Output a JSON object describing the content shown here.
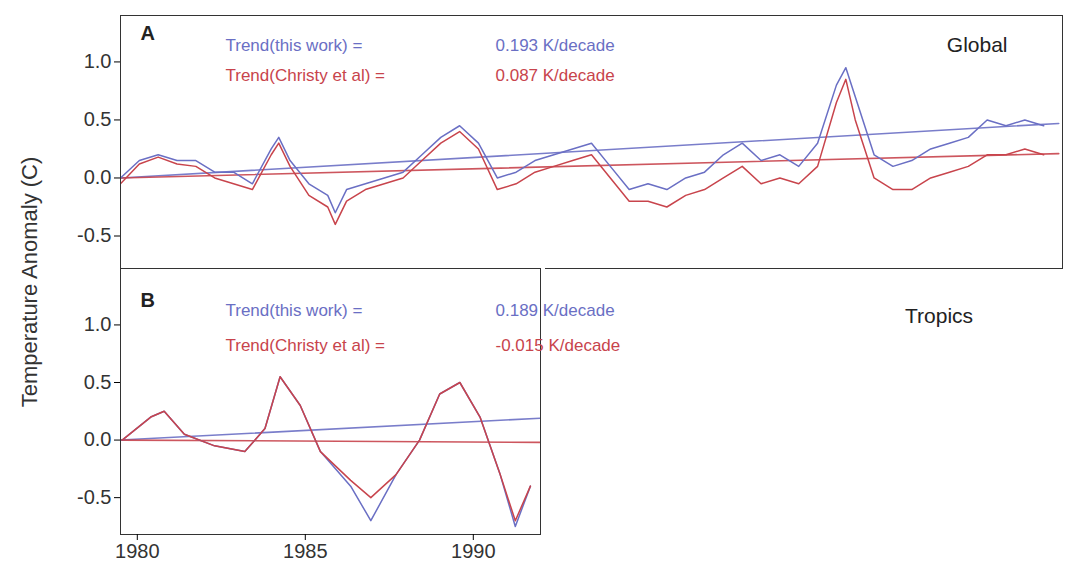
{
  "chart_data": [
    {
      "type": "line",
      "panel": "A",
      "title": "Global",
      "ylabel": "Temperature Anomaly (C)",
      "xlim": [
        1979,
        2004
      ],
      "ylim": [
        -0.78,
        1.4
      ],
      "yticks": [
        {
          "value": -0.5,
          "label": "-0.5"
        },
        {
          "value": 0,
          "label": "0.0"
        },
        {
          "value": 0.5,
          "label": "0.5"
        },
        {
          "value": 1,
          "label": "1.0"
        }
      ],
      "tick_labels": "y",
      "series": [
        {
          "name": "this work",
          "color": "#6a6fc4",
          "x": [
            1979.0,
            1979.5,
            1980.0,
            1980.5,
            1981.0,
            1981.5,
            1982.0,
            1982.5,
            1983.0,
            1983.2,
            1983.5,
            1984.0,
            1984.5,
            1984.7,
            1985.0,
            1985.5,
            1986.0,
            1986.5,
            1987.0,
            1987.5,
            1988.0,
            1988.5,
            1989.0,
            1989.5,
            1990.0,
            1990.5,
            1991.0,
            1991.5,
            1992.0,
            1992.5,
            1993.0,
            1993.5,
            1994.0,
            1994.5,
            1995.0,
            1995.5,
            1996.0,
            1996.5,
            1997.0,
            1997.5,
            1998.0,
            1998.25,
            1998.5,
            1999.0,
            1999.5,
            2000.0,
            2000.5,
            2001.0,
            2001.5,
            2002.0,
            2002.5,
            2003.0,
            2003.5
          ],
          "values": [
            0.0,
            0.15,
            0.2,
            0.15,
            0.15,
            0.05,
            0.05,
            -0.05,
            0.25,
            0.35,
            0.15,
            -0.05,
            -0.15,
            -0.3,
            -0.1,
            -0.05,
            0.0,
            0.05,
            0.2,
            0.35,
            0.45,
            0.3,
            0.0,
            0.05,
            0.15,
            0.2,
            0.25,
            0.3,
            0.1,
            -0.1,
            -0.05,
            -0.1,
            0.0,
            0.05,
            0.2,
            0.3,
            0.15,
            0.2,
            0.1,
            0.3,
            0.8,
            0.95,
            0.7,
            0.2,
            0.1,
            0.15,
            0.25,
            0.3,
            0.35,
            0.5,
            0.45,
            0.5,
            0.45
          ]
        },
        {
          "name": "Christy et al",
          "color": "#c8444c",
          "x": [
            1979.0,
            1979.5,
            1980.0,
            1980.5,
            1981.0,
            1981.5,
            1982.0,
            1982.5,
            1983.0,
            1983.2,
            1983.5,
            1984.0,
            1984.5,
            1984.7,
            1985.0,
            1985.5,
            1986.0,
            1986.5,
            1987.0,
            1987.5,
            1988.0,
            1988.5,
            1989.0,
            1989.5,
            1990.0,
            1990.5,
            1991.0,
            1991.5,
            1992.0,
            1992.5,
            1993.0,
            1993.5,
            1994.0,
            1994.5,
            1995.0,
            1995.5,
            1996.0,
            1996.5,
            1997.0,
            1997.5,
            1998.0,
            1998.25,
            1998.5,
            1999.0,
            1999.5,
            2000.0,
            2000.5,
            2001.0,
            2001.5,
            2002.0,
            2002.5,
            2003.0,
            2003.5
          ],
          "values": [
            -0.05,
            0.12,
            0.18,
            0.12,
            0.1,
            0.0,
            -0.05,
            -0.1,
            0.2,
            0.3,
            0.1,
            -0.15,
            -0.25,
            -0.4,
            -0.2,
            -0.1,
            -0.05,
            0.0,
            0.15,
            0.3,
            0.4,
            0.25,
            -0.1,
            -0.05,
            0.05,
            0.1,
            0.15,
            0.2,
            0.0,
            -0.2,
            -0.2,
            -0.25,
            -0.15,
            -0.1,
            0.0,
            0.1,
            -0.05,
            0.0,
            -0.05,
            0.1,
            0.65,
            0.85,
            0.5,
            0.0,
            -0.1,
            -0.1,
            0.0,
            0.05,
            0.1,
            0.2,
            0.2,
            0.25,
            0.2
          ]
        }
      ],
      "trend_lines": [
        {
          "color": "#6a6fc4",
          "x": [
            1979,
            2003.9
          ],
          "values": [
            0.0,
            0.47
          ]
        },
        {
          "color": "#c8444c",
          "x": [
            1979,
            2003.9
          ],
          "values": [
            0.0,
            0.21
          ]
        }
      ],
      "annotations": [
        {
          "text": "Trend(this work) =",
          "value": "0.193 K/decade",
          "color": "#6a6fc4"
        },
        {
          "text": "Trend(Christy et al) =",
          "value": "0.087 K/decade",
          "color": "#c8444c"
        }
      ]
    },
    {
      "type": "line",
      "panel": "B",
      "title": "Tropics",
      "xlim": [
        1979.5,
        1992
      ],
      "ylim": [
        -0.82,
        1.49
      ],
      "xticks": [
        1980,
        1985,
        1990
      ],
      "yticks": [
        {
          "value": -0.5,
          "label": "-0.5"
        },
        {
          "value": 0,
          "label": "0.0"
        },
        {
          "value": 0.5,
          "label": "0.5"
        },
        {
          "value": 1,
          "label": "1.0"
        }
      ],
      "series": [
        {
          "name": "this work",
          "color": "#6a6fc4",
          "x": [
            1979.55,
            1980.4,
            1980.8,
            1981.4,
            1982.3,
            1983.2,
            1983.8,
            1984.25,
            1984.85,
            1985.45,
            1986.35,
            1986.95,
            1987.7,
            1988.4,
            1989.0,
            1989.6,
            1990.2,
            1990.8,
            1991.25,
            1991.7
          ],
          "values": [
            0.0,
            0.2,
            0.25,
            0.05,
            -0.05,
            -0.1,
            0.1,
            0.55,
            0.3,
            -0.1,
            -0.4,
            -0.7,
            -0.3,
            0.0,
            0.4,
            0.5,
            0.2,
            -0.3,
            -0.75,
            -0.4
          ]
        },
        {
          "name": "Christy et al",
          "color": "#c8444c",
          "x": [
            1979.55,
            1980.4,
            1980.8,
            1981.4,
            1982.3,
            1983.2,
            1983.8,
            1984.25,
            1984.85,
            1985.45,
            1986.35,
            1986.95,
            1987.7,
            1988.4,
            1989.0,
            1989.6,
            1990.2,
            1990.8,
            1991.25,
            1991.7
          ],
          "values": [
            0.0,
            0.2,
            0.25,
            0.05,
            -0.05,
            -0.1,
            0.1,
            0.55,
            0.3,
            -0.1,
            -0.35,
            -0.5,
            -0.3,
            0.0,
            0.4,
            0.5,
            0.2,
            -0.3,
            -0.7,
            -0.4
          ]
        }
      ],
      "trend_lines": [
        {
          "color": "#6a6fc4",
          "x": [
            1979.5,
            1992
          ],
          "values": [
            0.0,
            0.19
          ]
        },
        {
          "color": "#c8444c",
          "x": [
            1979.5,
            1992
          ],
          "values": [
            0.0,
            -0.02
          ]
        }
      ],
      "annotations": [
        {
          "text": "Trend(this work) =",
          "value": "0.189 K/decade",
          "color": "#6a6fc4"
        },
        {
          "text": "Trend(Christy et al) =",
          "value": "-0.015 K/decade",
          "color": "#c8444c"
        }
      ]
    }
  ]
}
